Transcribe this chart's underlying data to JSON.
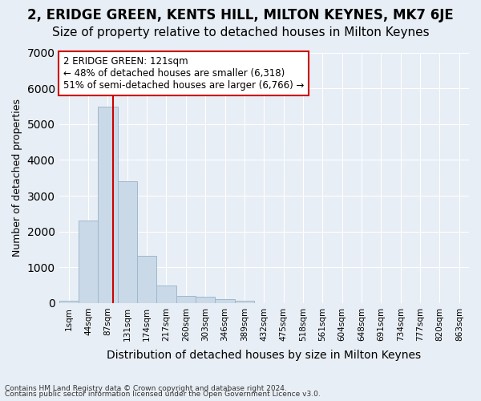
{
  "title": "2, ERIDGE GREEN, KENTS HILL, MILTON KEYNES, MK7 6JE",
  "subtitle": "Size of property relative to detached houses in Milton Keynes",
  "xlabel": "Distribution of detached houses by size in Milton Keynes",
  "ylabel": "Number of detached properties",
  "footnote1": "Contains HM Land Registry data © Crown copyright and database right 2024.",
  "footnote2": "Contains public sector information licensed under the Open Government Licence v3.0.",
  "bin_labels": [
    "1sqm",
    "44sqm",
    "87sqm",
    "131sqm",
    "174sqm",
    "217sqm",
    "260sqm",
    "303sqm",
    "346sqm",
    "389sqm",
    "432sqm",
    "475sqm",
    "518sqm",
    "561sqm",
    "604sqm",
    "648sqm",
    "691sqm",
    "734sqm",
    "777sqm",
    "820sqm",
    "863sqm"
  ],
  "bar_values": [
    75,
    2300,
    5480,
    3400,
    1310,
    490,
    205,
    185,
    100,
    65,
    0,
    0,
    0,
    0,
    0,
    0,
    0,
    0,
    0,
    0,
    0
  ],
  "bar_color": "#c9d9e8",
  "bar_edge_color": "#a0b8cc",
  "vline_position": 2.27,
  "vline_color": "#cc0000",
  "annotation_text": "2 ERIDGE GREEN: 121sqm\n← 48% of detached houses are smaller (6,318)\n51% of semi-detached houses are larger (6,766) →",
  "annotation_box_color": "#ffffff",
  "annotation_box_edge": "#cc0000",
  "ylim": [
    0,
    7000
  ],
  "yticks": [
    0,
    1000,
    2000,
    3000,
    4000,
    5000,
    6000,
    7000
  ],
  "background_color": "#e8eef5",
  "grid_color": "#ffffff",
  "title_fontsize": 12,
  "subtitle_fontsize": 11
}
